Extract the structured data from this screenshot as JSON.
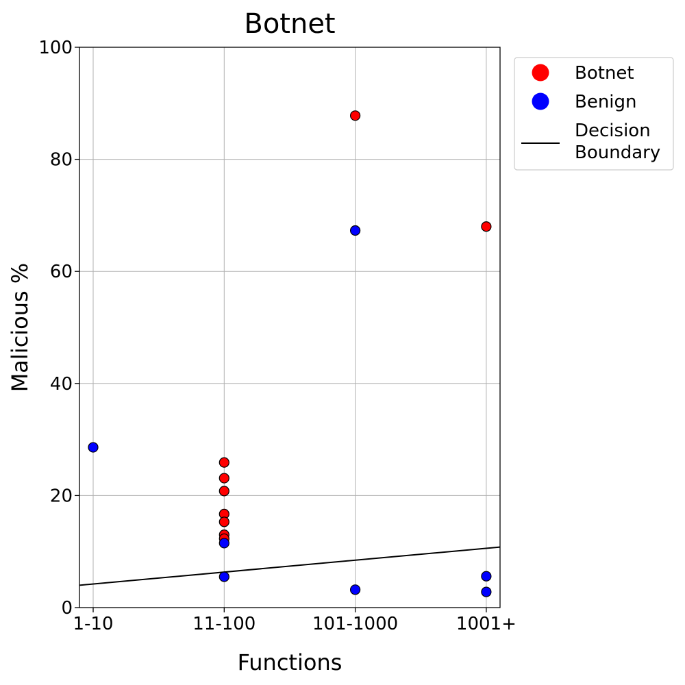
{
  "chart_data": {
    "type": "scatter",
    "title": "Botnet",
    "xlabel": "Functions",
    "ylabel": "Malicious %",
    "categories": [
      "1-10",
      "11-100",
      "101-1000",
      "1001+"
    ],
    "ylim": [
      0,
      100
    ],
    "yticks": [
      "0",
      "20",
      "40",
      "60",
      "80",
      "100"
    ],
    "grid": true,
    "legend_position": "outside-top-right",
    "series": [
      {
        "name": "Botnet",
        "color": "#ff0000",
        "points": [
          {
            "x": "11-100",
            "y": 25.9
          },
          {
            "x": "11-100",
            "y": 23.1
          },
          {
            "x": "11-100",
            "y": 20.8
          },
          {
            "x": "11-100",
            "y": 16.7
          },
          {
            "x": "11-100",
            "y": 15.3
          },
          {
            "x": "11-100",
            "y": 13.0
          },
          {
            "x": "11-100",
            "y": 12.3
          },
          {
            "x": "101-1000",
            "y": 87.8
          },
          {
            "x": "1001+",
            "y": 68.0
          }
        ]
      },
      {
        "name": "Benign",
        "color": "#0000ff",
        "points": [
          {
            "x": "1-10",
            "y": 28.6
          },
          {
            "x": "11-100",
            "y": 11.5
          },
          {
            "x": "11-100",
            "y": 5.5
          },
          {
            "x": "101-1000",
            "y": 67.3
          },
          {
            "x": "101-1000",
            "y": 3.2
          },
          {
            "x": "1001+",
            "y": 5.6
          },
          {
            "x": "1001+",
            "y": 2.8
          }
        ]
      }
    ],
    "decision_boundary": {
      "name": "Decision Boundary",
      "legend_lines": [
        "Decision",
        "Boundary"
      ],
      "color": "#000000",
      "from": {
        "x_index": -0.1,
        "y": 4.0
      },
      "to": {
        "x_index": 3.1,
        "y": 10.8
      }
    }
  }
}
